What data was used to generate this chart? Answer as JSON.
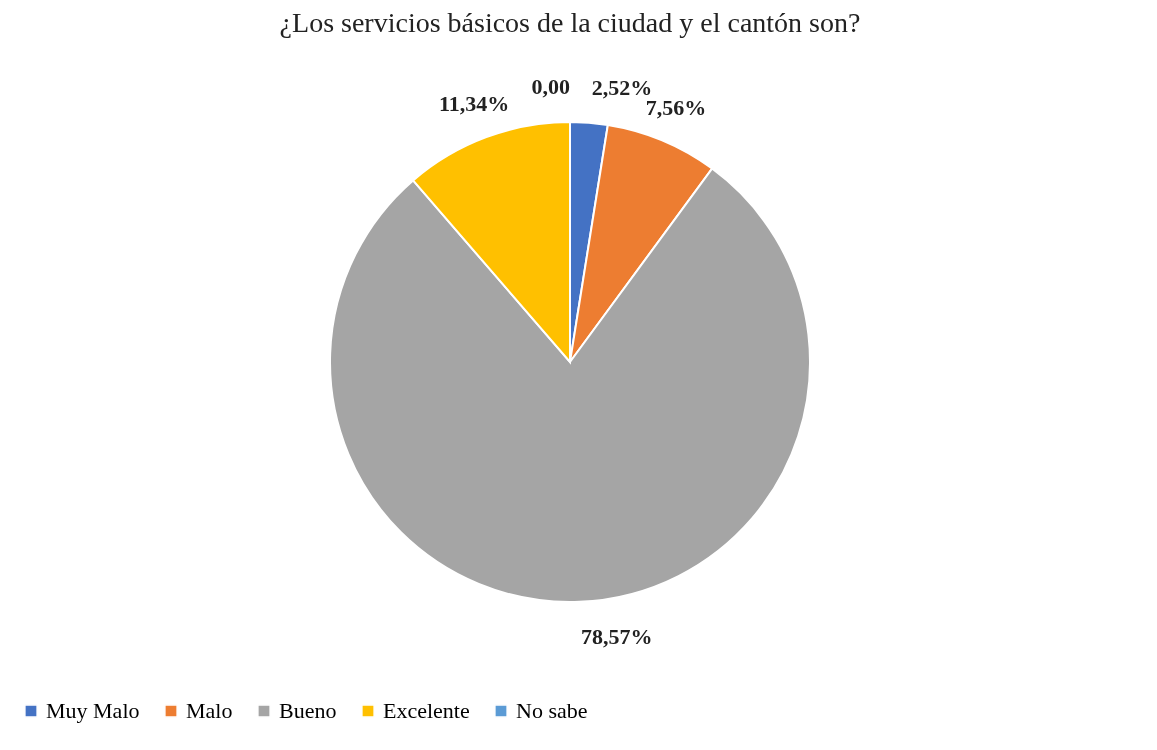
{
  "chart_data": {
    "type": "pie",
    "title": "¿Los servicios básicos de la ciudad y el cantón son?",
    "categories": [
      "Muy Malo",
      "Malo",
      "Bueno",
      "Excelente",
      "No sabe"
    ],
    "values": [
      2.52,
      7.56,
      78.57,
      11.34,
      0.0
    ],
    "colors": [
      "#4472c4",
      "#ed7d31",
      "#a5a5a5",
      "#ffc000",
      "#5b9bd5"
    ],
    "value_labels": [
      "2,52%",
      "7,56%",
      "78,57%",
      "11,34%",
      "0,00"
    ],
    "legend": "bottom"
  }
}
